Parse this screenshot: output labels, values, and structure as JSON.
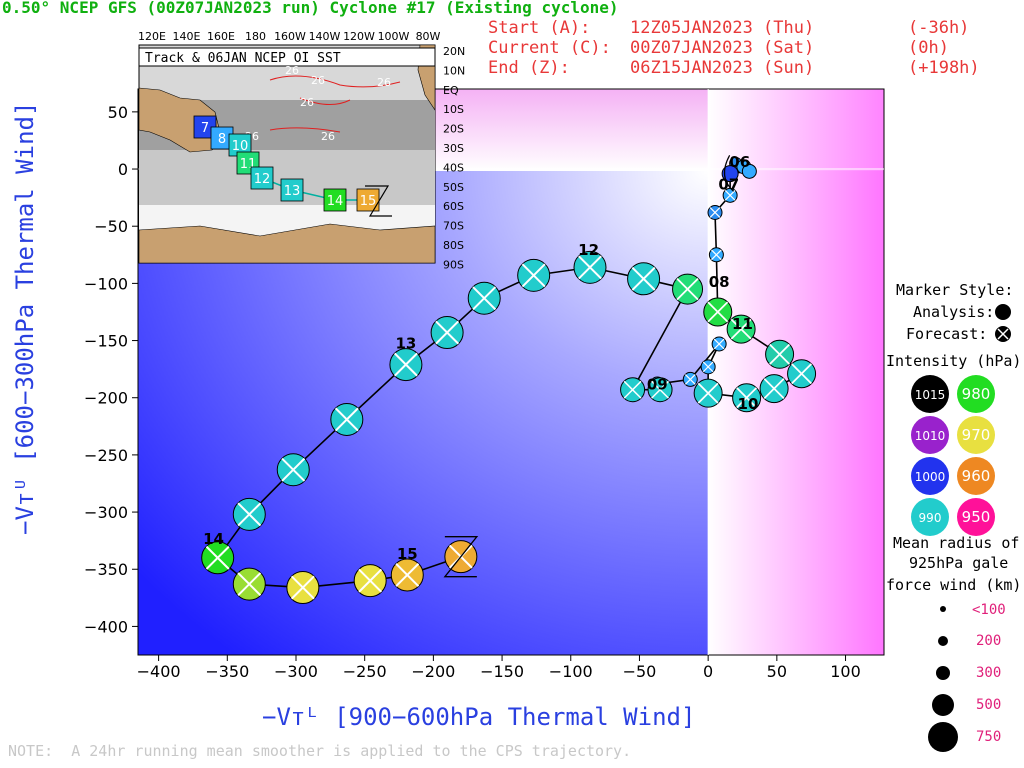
{
  "header": {
    "title": "0.50° NCEP GFS (00Z07JAN2023 run) Cyclone #17 (Existing cyclone)",
    "start_label": "Start (A):",
    "start_time": "12Z05JAN2023 (Thu)",
    "start_offset": "(-36h)",
    "current_label": "Current (C):",
    "current_time": "00Z07JAN2023 (Sat)",
    "current_offset": "(0h)",
    "end_label": "End (Z):",
    "end_time": "06Z15JAN2023 (Sun)",
    "end_offset": "(+198h)"
  },
  "inset": {
    "title": "Track & 06JAN NCEP OI SST",
    "lon_labels": [
      "120E",
      "140E",
      "160E",
      "180",
      "160W",
      "140W",
      "120W",
      "100W",
      "80W"
    ],
    "lat_labels": [
      "20N",
      "10N",
      "EQ",
      "10S",
      "20S",
      "30S",
      "40S",
      "50S",
      "60S",
      "70S",
      "80S",
      "90S"
    ],
    "sst_labels": [
      "26",
      "26",
      "26",
      "26",
      "26",
      "26"
    ],
    "track_day_labels": [
      "7",
      "8",
      "10",
      "11",
      "12",
      "13",
      "14",
      "15"
    ]
  },
  "legend": {
    "marker_style": "Marker Style:",
    "analysis": "Analysis:",
    "forecast": "Forecast:",
    "intensity": "Intensity (hPa):",
    "intensity_levels": [
      {
        "label": "1015",
        "color": "#000000"
      },
      {
        "label": "980",
        "color": "#22dd22"
      },
      {
        "label": "1010",
        "color": "#9922cc"
      },
      {
        "label": "970",
        "color": "#e8e040"
      },
      {
        "label": "1000",
        "color": "#2233ee"
      },
      {
        "label": "960",
        "color": "#ee8822"
      },
      {
        "label": "990",
        "color": "#22cccc"
      },
      {
        "label": "950",
        "color": "#ff1199"
      }
    ],
    "radius_title_1": "Mean radius of",
    "radius_title_2": "925hPa gale",
    "radius_title_3": "force wind (km):",
    "radius_levels": [
      "<100",
      "200",
      "300",
      "500",
      "750"
    ]
  },
  "axes": {
    "xlabel": "−Vᴛᴸ [900−600hPa Thermal Wind]",
    "ylabel": "−Vᴛᵁ [600−300hPa Thermal Wind]"
  },
  "note": "NOTE:  A 24hr running mean smoother is applied to the CPS trajectory.",
  "chart_data": {
    "type": "scatter",
    "title": "0.50° NCEP GFS (00Z07JAN2023 run) Cyclone #17 (Existing cyclone)",
    "xlabel": "−Vᴛᴸ [900−600hPa Thermal Wind]",
    "ylabel": "−Vᴛᵁ [600−300hPa Thermal Wind]",
    "xlim": [
      -415,
      128
    ],
    "ylim": [
      -425,
      70
    ],
    "x_ticks": [
      -400,
      -350,
      -300,
      -250,
      -200,
      -150,
      -100,
      -50,
      0,
      50,
      100
    ],
    "y_ticks": [
      50,
      0,
      -50,
      -100,
      -150,
      -200,
      -250,
      -300,
      -350,
      -400
    ],
    "day_labels": [
      {
        "label": "06",
        "x": 23,
        "y": 2
      },
      {
        "label": "07",
        "x": 15,
        "y": -18
      },
      {
        "label": "08",
        "x": 8,
        "y": -103
      },
      {
        "label": "09",
        "x": -37,
        "y": -193
      },
      {
        "label": "10",
        "x": 29,
        "y": -210
      },
      {
        "label": "11",
        "x": 25,
        "y": -140
      },
      {
        "label": "12",
        "x": -87,
        "y": -75
      },
      {
        "label": "13",
        "x": -220,
        "y": -157
      },
      {
        "label": "14",
        "x": -360,
        "y": -328
      },
      {
        "label": "15",
        "x": -219,
        "y": -341
      }
    ],
    "series": [
      {
        "points": [
          {
            "x": 20,
            "y": 5,
            "r": 6,
            "kind": "analysis",
            "color": "#2b8cf0"
          },
          {
            "x": 26,
            "y": 2,
            "r": 7,
            "kind": "analysis",
            "color": "#33aaff"
          },
          {
            "x": 30,
            "y": -2,
            "r": 7,
            "kind": "analysis",
            "color": "#33aaff"
          },
          {
            "x": 16,
            "y": -4,
            "r": 8,
            "kind": "analysis",
            "color": "#2244ee"
          },
          {
            "x": 16,
            "y": -23,
            "r": 7,
            "kind": "forecast",
            "color": "#33aaff"
          },
          {
            "x": 5,
            "y": -38,
            "r": 7,
            "kind": "forecast",
            "color": "#2b8cf0"
          },
          {
            "x": 6,
            "y": -75,
            "r": 7,
            "kind": "forecast",
            "color": "#33aaff"
          },
          {
            "x": 7,
            "y": -125,
            "r": 14,
            "kind": "forecast",
            "color": "#22dd44"
          },
          {
            "x": 24,
            "y": -140,
            "r": 14,
            "kind": "forecast",
            "color": "#22dd77"
          },
          {
            "x": 52,
            "y": -162,
            "r": 14,
            "kind": "forecast",
            "color": "#22ccaa"
          },
          {
            "x": 68,
            "y": -179,
            "r": 14,
            "kind": "forecast",
            "color": "#22cccc"
          },
          {
            "x": 48,
            "y": -192,
            "r": 14,
            "kind": "forecast",
            "color": "#22cccc"
          },
          {
            "x": 28,
            "y": -200,
            "r": 14,
            "kind": "forecast",
            "color": "#22cccc"
          },
          {
            "x": 0,
            "y": -196,
            "r": 14,
            "kind": "forecast",
            "color": "#22cccc"
          },
          {
            "x": 0,
            "y": -173,
            "r": 7,
            "kind": "forecast",
            "color": "#33aaff"
          },
          {
            "x": 8,
            "y": -153,
            "r": 7,
            "kind": "forecast",
            "color": "#33aaff"
          },
          {
            "x": -13,
            "y": -184,
            "r": 7,
            "kind": "forecast",
            "color": "#33aaff"
          },
          {
            "x": -37,
            "y": -188,
            "r": 7,
            "kind": "forecast",
            "color": "#33aaff"
          },
          {
            "x": -35,
            "y": -193,
            "r": 12,
            "kind": "forecast",
            "color": "#22cccc"
          },
          {
            "x": -55,
            "y": -193,
            "r": 12,
            "kind": "forecast",
            "color": "#22cccc"
          },
          {
            "x": -15,
            "y": -105,
            "r": 15,
            "kind": "forecast",
            "color": "#22dd77"
          },
          {
            "x": -47,
            "y": -96,
            "r": 16,
            "kind": "forecast",
            "color": "#22cccc"
          },
          {
            "x": -86,
            "y": -86,
            "r": 16,
            "kind": "forecast",
            "color": "#22cccc"
          },
          {
            "x": -127,
            "y": -93,
            "r": 16,
            "kind": "forecast",
            "color": "#22cccc"
          },
          {
            "x": -163,
            "y": -113,
            "r": 16,
            "kind": "forecast",
            "color": "#22cccc"
          },
          {
            "x": -190,
            "y": -143,
            "r": 16,
            "kind": "forecast",
            "color": "#22cccc"
          },
          {
            "x": -220,
            "y": -171,
            "r": 16,
            "kind": "forecast",
            "color": "#22cccc"
          },
          {
            "x": -263,
            "y": -219,
            "r": 16,
            "kind": "forecast",
            "color": "#22cccc"
          },
          {
            "x": -302,
            "y": -263,
            "r": 16,
            "kind": "forecast",
            "color": "#22cccc"
          },
          {
            "x": -334,
            "y": -302,
            "r": 16,
            "kind": "forecast",
            "color": "#22cccc"
          },
          {
            "x": -357,
            "y": -340,
            "r": 16,
            "kind": "forecast",
            "color": "#22dd22"
          },
          {
            "x": -334,
            "y": -363,
            "r": 16,
            "kind": "forecast",
            "color": "#99dd33"
          },
          {
            "x": -295,
            "y": -366,
            "r": 16,
            "kind": "forecast",
            "color": "#e8e040"
          },
          {
            "x": -246,
            "y": -360,
            "r": 16,
            "kind": "forecast",
            "color": "#e8e040"
          },
          {
            "x": -219,
            "y": -355,
            "r": 16,
            "kind": "forecast",
            "color": "#eebb33"
          },
          {
            "x": -180,
            "y": -339,
            "r": 16,
            "kind": "forecast",
            "color": "#eeaa33"
          }
        ]
      }
    ]
  }
}
